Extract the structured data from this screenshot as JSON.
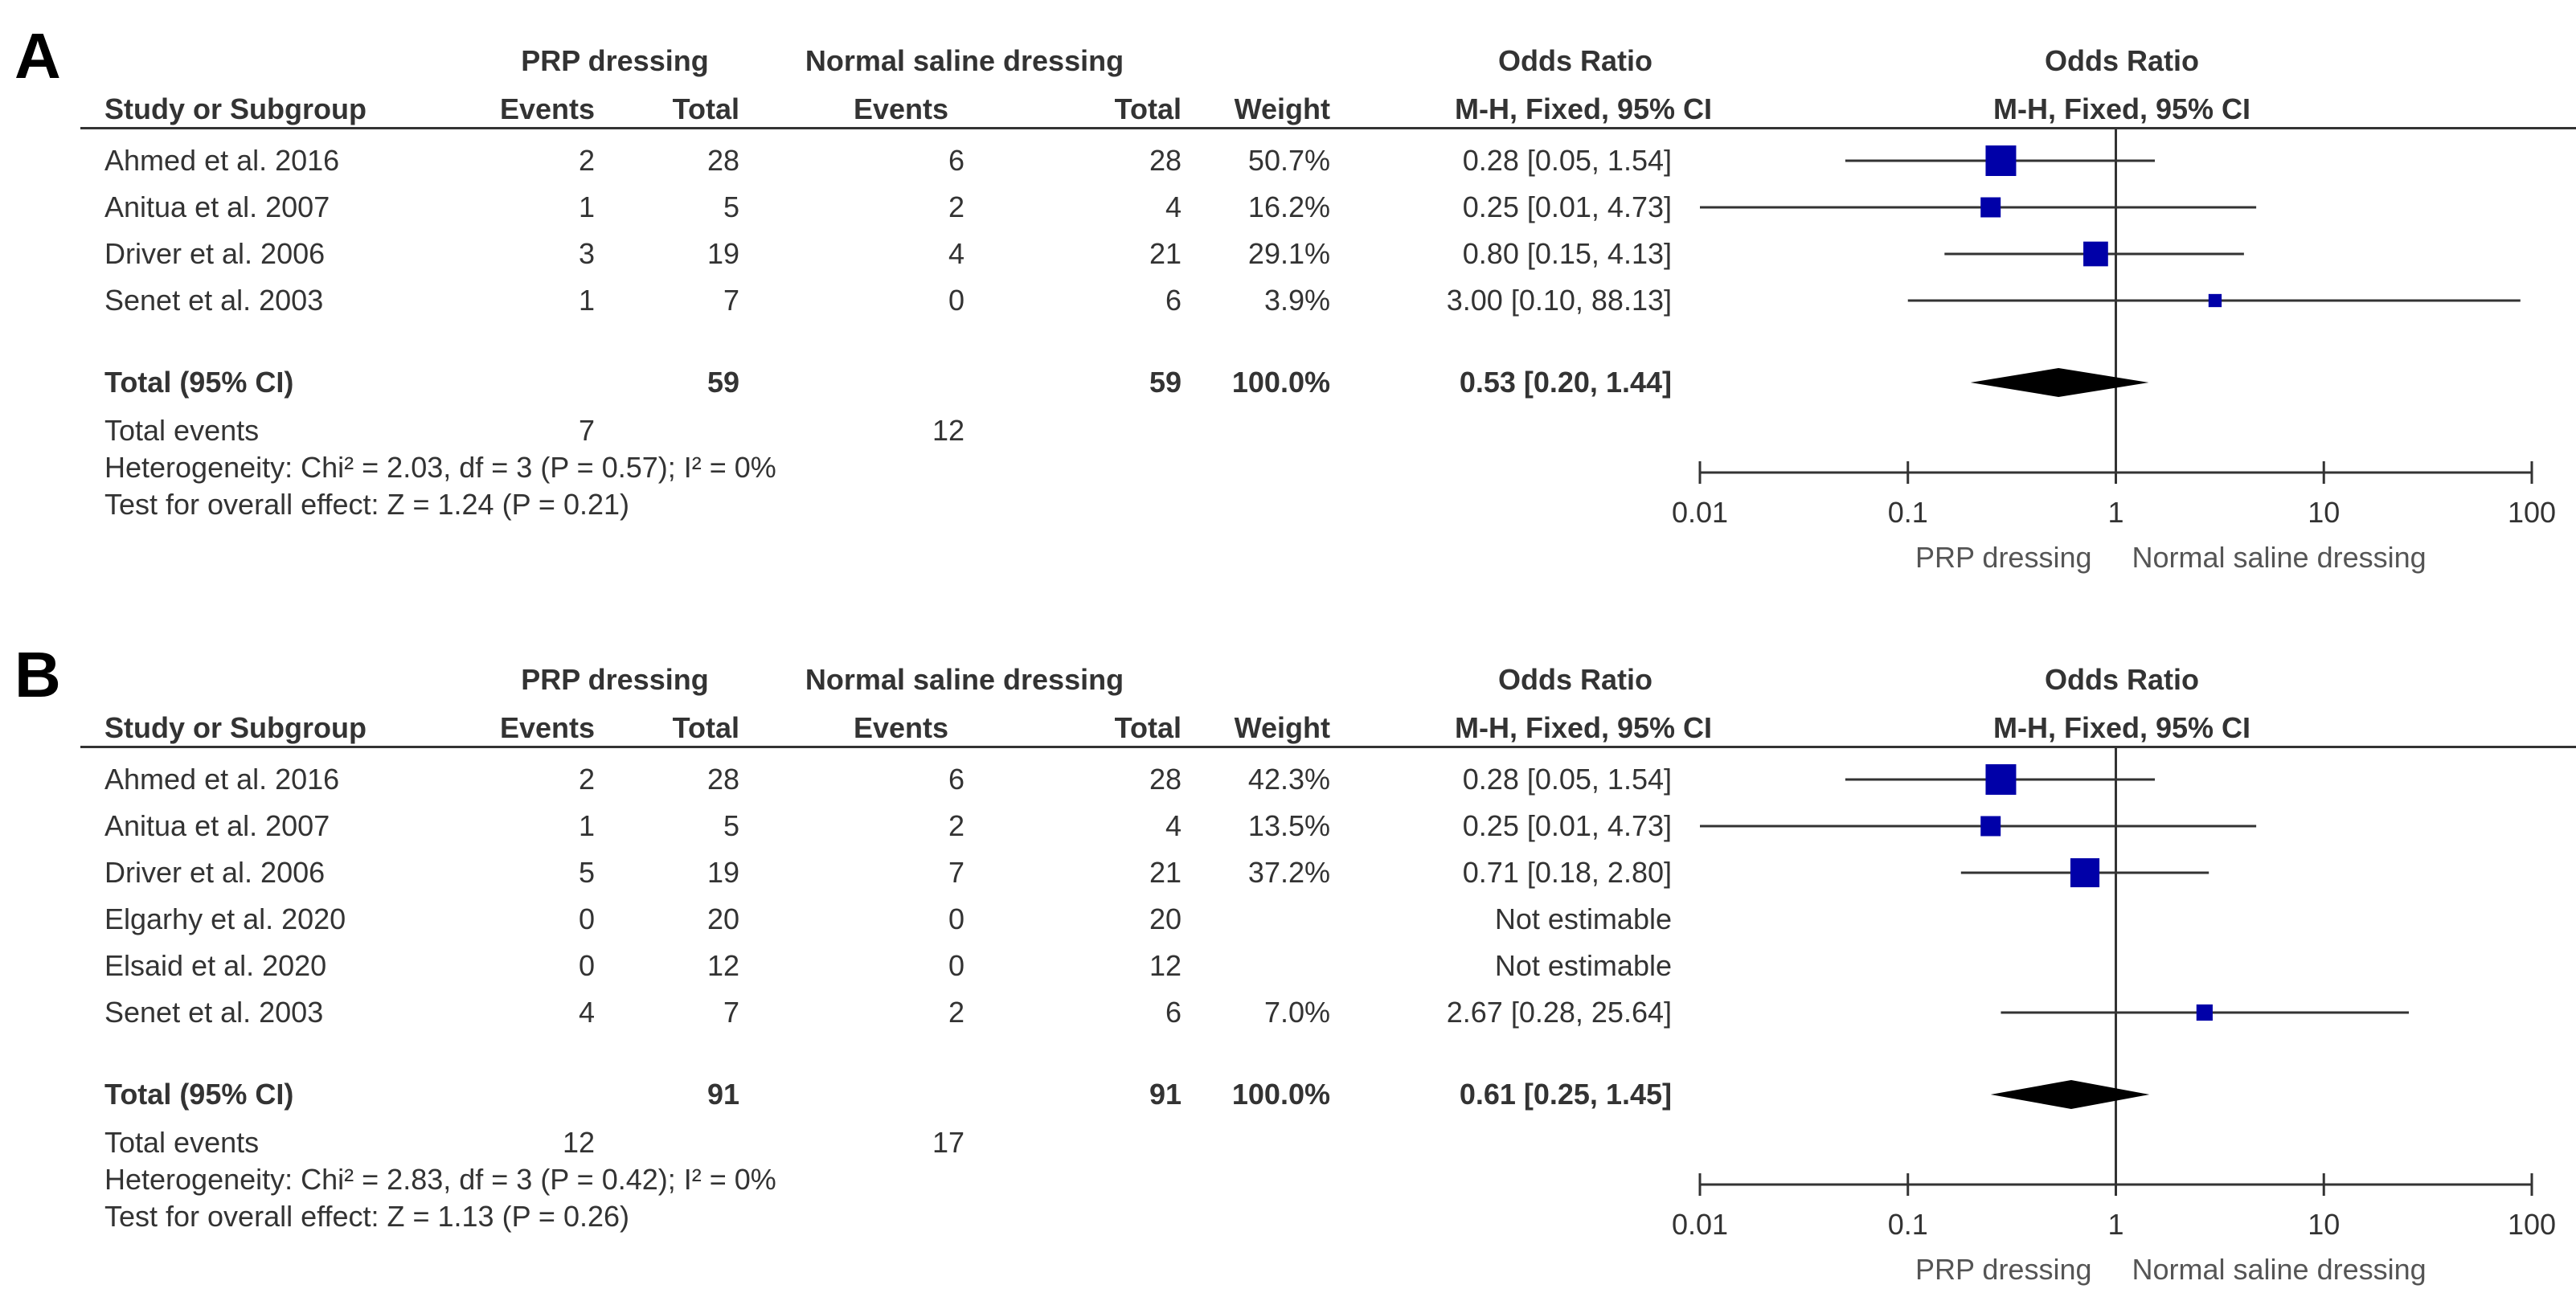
{
  "chart_data": [
    {
      "type": "forest",
      "panel_label": "A",
      "group1_header": "PRP dressing",
      "group2_header": "Normal saline dressing",
      "or_header": "Odds Ratio",
      "method_header": "M-H, Fixed, 95% CI",
      "plot_header": "Odds Ratio",
      "plot_method_header": "M-H, Fixed, 95% CI",
      "col_study": "Study or Subgroup",
      "col_events1": "Events",
      "col_total1": "Total",
      "col_events2": "Events",
      "col_total2": "Total",
      "col_weight": "Weight",
      "studies": [
        {
          "name": "Ahmed et al. 2016",
          "e1": "2",
          "n1": "28",
          "e2": "6",
          "n2": "28",
          "weight": "50.7%",
          "or_text": "0.28 [0.05, 1.54]",
          "or": 0.28,
          "lo": 0.05,
          "hi": 1.54,
          "w": 50.7
        },
        {
          "name": "Anitua et al. 2007",
          "e1": "1",
          "n1": "5",
          "e2": "2",
          "n2": "4",
          "weight": "16.2%",
          "or_text": "0.25 [0.01, 4.73]",
          "or": 0.25,
          "lo": 0.01,
          "hi": 4.73,
          "w": 16.2
        },
        {
          "name": "Driver et al. 2006",
          "e1": "3",
          "n1": "19",
          "e2": "4",
          "n2": "21",
          "weight": "29.1%",
          "or_text": "0.80 [0.15, 4.13]",
          "or": 0.8,
          "lo": 0.15,
          "hi": 4.13,
          "w": 29.1
        },
        {
          "name": "Senet et al. 2003",
          "e1": "1",
          "n1": "7",
          "e2": "0",
          "n2": "6",
          "weight": "3.9%",
          "or_text": "3.00 [0.10, 88.13]",
          "or": 3.0,
          "lo": 0.1,
          "hi": 88.13,
          "w": 3.9
        }
      ],
      "total": {
        "label": "Total (95% CI)",
        "n1": "59",
        "n2": "59",
        "weight": "100.0%",
        "or_text": "0.53 [0.20, 1.44]",
        "or": 0.53,
        "lo": 0.2,
        "hi": 1.44
      },
      "total_events": {
        "label": "Total events",
        "e1": "7",
        "e2": "12"
      },
      "heterogeneity": "Heterogeneity: Chi² = 2.03, df = 3 (P = 0.57); I² = 0%",
      "overall_effect": "Test for overall effect: Z = 1.24 (P = 0.21)",
      "axis": {
        "scale": "log",
        "ticks": [
          0.01,
          0.1,
          1,
          10,
          100
        ],
        "tick_labels": [
          "0.01",
          "0.1",
          "1",
          "10",
          "100"
        ],
        "xlim": [
          0.01,
          100
        ]
      },
      "favours_left": "PRP dressing",
      "favours_right": "Normal saline dressing"
    },
    {
      "type": "forest",
      "panel_label": "B",
      "group1_header": "PRP dressing",
      "group2_header": "Normal saline dressing",
      "or_header": "Odds Ratio",
      "method_header": "M-H, Fixed, 95% CI",
      "plot_header": "Odds Ratio",
      "plot_method_header": "M-H, Fixed, 95% CI",
      "col_study": "Study or Subgroup",
      "col_events1": "Events",
      "col_total1": "Total",
      "col_events2": "Events",
      "col_total2": "Total",
      "col_weight": "Weight",
      "studies": [
        {
          "name": "Ahmed et al. 2016",
          "e1": "2",
          "n1": "28",
          "e2": "6",
          "n2": "28",
          "weight": "42.3%",
          "or_text": "0.28 [0.05, 1.54]",
          "or": 0.28,
          "lo": 0.05,
          "hi": 1.54,
          "w": 42.3
        },
        {
          "name": "Anitua et al. 2007",
          "e1": "1",
          "n1": "5",
          "e2": "2",
          "n2": "4",
          "weight": "13.5%",
          "or_text": "0.25 [0.01, 4.73]",
          "or": 0.25,
          "lo": 0.01,
          "hi": 4.73,
          "w": 13.5
        },
        {
          "name": "Driver et al. 2006",
          "e1": "5",
          "n1": "19",
          "e2": "7",
          "n2": "21",
          "weight": "37.2%",
          "or_text": "0.71 [0.18, 2.80]",
          "or": 0.71,
          "lo": 0.18,
          "hi": 2.8,
          "w": 37.2
        },
        {
          "name": "Elgarhy et al. 2020",
          "e1": "0",
          "n1": "20",
          "e2": "0",
          "n2": "20",
          "weight": "",
          "or_text": "Not estimable",
          "or": null,
          "lo": null,
          "hi": null,
          "w": 0
        },
        {
          "name": "Elsaid et al. 2020",
          "e1": "0",
          "n1": "12",
          "e2": "0",
          "n2": "12",
          "weight": "",
          "or_text": "Not estimable",
          "or": null,
          "lo": null,
          "hi": null,
          "w": 0
        },
        {
          "name": "Senet et al. 2003",
          "e1": "4",
          "n1": "7",
          "e2": "2",
          "n2": "6",
          "weight": "7.0%",
          "or_text": "2.67 [0.28, 25.64]",
          "or": 2.67,
          "lo": 0.28,
          "hi": 25.64,
          "w": 7.0
        }
      ],
      "total": {
        "label": "Total (95% CI)",
        "n1": "91",
        "n2": "91",
        "weight": "100.0%",
        "or_text": "0.61 [0.25, 1.45]",
        "or": 0.61,
        "lo": 0.25,
        "hi": 1.45
      },
      "total_events": {
        "label": "Total events",
        "e1": "12",
        "e2": "17"
      },
      "heterogeneity": "Heterogeneity: Chi² = 2.83, df = 3 (P = 0.42); I² = 0%",
      "overall_effect": "Test for overall effect: Z = 1.13 (P = 0.26)",
      "axis": {
        "scale": "log",
        "ticks": [
          0.01,
          0.1,
          1,
          10,
          100
        ],
        "tick_labels": [
          "0.01",
          "0.1",
          "1",
          "10",
          "100"
        ],
        "xlim": [
          0.01,
          100
        ]
      },
      "favours_left": "PRP dressing",
      "favours_right": "Normal saline dressing"
    }
  ],
  "colors": {
    "marker": "#0000a8",
    "diamond": "#000000",
    "line": "#333333",
    "text": "#333333"
  }
}
